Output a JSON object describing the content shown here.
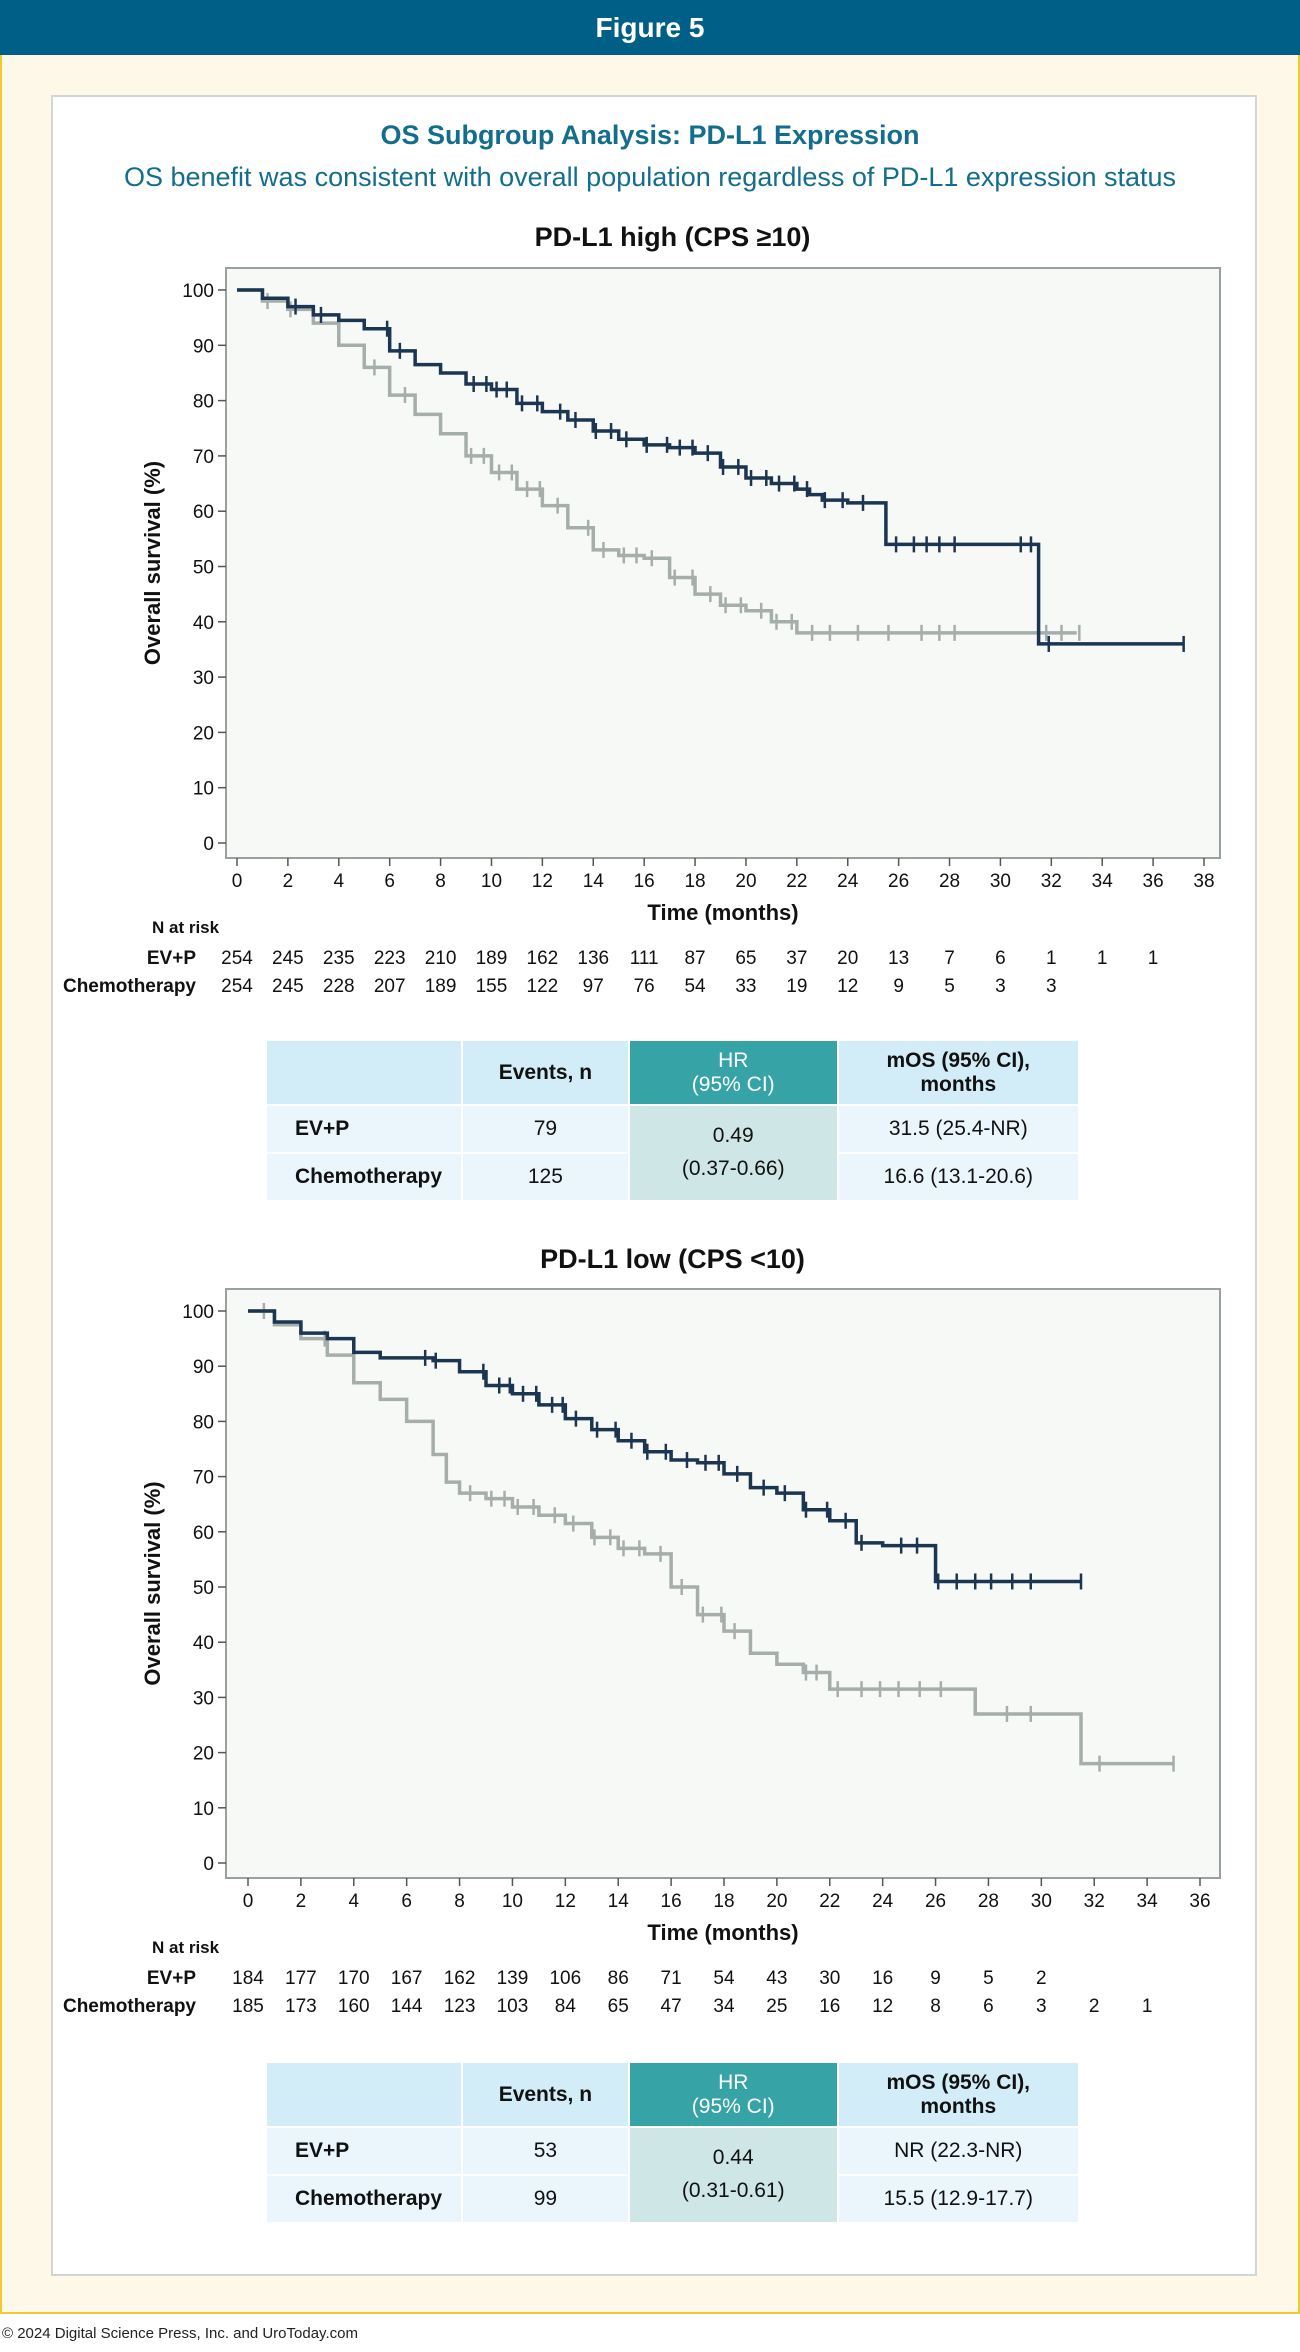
{
  "banner": "Figure 5",
  "header": {
    "title": "OS Subgroup Analysis: PD-L1 Expression",
    "subtitle": "OS benefit was consistent with overall population regardless of PD-L1 expression status"
  },
  "footer": "© 2024 Digital Science Press, Inc. and UroToday.com",
  "colors": {
    "evp": "#1c3551",
    "chemo": "#a6aeac",
    "banner": "#005f87",
    "title": "#136e8e",
    "hr_header": "#36a3a6"
  },
  "chart_data": [
    {
      "type": "line",
      "title": "PD-L1 high (CPS ≥10)",
      "xlabel": "Time (months)",
      "ylabel": "Overall survival (%)",
      "xlim": [
        0,
        38
      ],
      "ylim": [
        0,
        100
      ],
      "xticks": [
        0,
        2,
        4,
        6,
        8,
        10,
        12,
        14,
        16,
        18,
        20,
        22,
        24,
        26,
        28,
        30,
        32,
        34,
        36,
        38
      ],
      "yticks": [
        0,
        10,
        20,
        30,
        40,
        50,
        60,
        70,
        80,
        90,
        100
      ],
      "series": [
        {
          "name": "EV+P",
          "color": "#1c3551",
          "x": [
            0,
            1,
            2,
            3,
            4,
            5,
            6,
            7,
            8,
            9,
            10,
            11,
            12,
            13,
            14,
            15,
            16,
            17,
            18,
            19,
            20,
            21,
            22,
            22.5,
            23,
            24,
            25,
            25.5,
            26,
            28,
            30,
            31.5,
            32,
            34,
            36,
            37.2
          ],
          "y": [
            100,
            98.5,
            97,
            95.5,
            94.5,
            93,
            89,
            86.5,
            85,
            83,
            82,
            79.5,
            78,
            76.5,
            74.5,
            73,
            72,
            71.5,
            70.5,
            68,
            66,
            65,
            64,
            63,
            62,
            61.5,
            61.5,
            54,
            54,
            54,
            54,
            36,
            36,
            36,
            36,
            36
          ],
          "censor_x": [
            2.3,
            3.3,
            5.9,
            6.4,
            9.3,
            9.8,
            10.2,
            10.6,
            11.2,
            11.8,
            12.7,
            13.3,
            14.1,
            14.7,
            15.3,
            16.1,
            16.9,
            17.4,
            17.9,
            18.5,
            19.1,
            19.7,
            20.2,
            20.8,
            21.3,
            21.9,
            22.4,
            23.1,
            23.8,
            24.6,
            25.9,
            26.6,
            27.1,
            27.6,
            28.2,
            30.8,
            31.2,
            31.9,
            37.2
          ]
        },
        {
          "name": "Chemotherapy",
          "color": "#a6aeac",
          "x": [
            0,
            1,
            2,
            3,
            4,
            5,
            6,
            7,
            8,
            9,
            10,
            11,
            12,
            13,
            14,
            15,
            16,
            17,
            18,
            19,
            20,
            21,
            22,
            23,
            24,
            26,
            28,
            30,
            31,
            33
          ],
          "y": [
            100,
            98,
            96.5,
            94,
            90,
            86,
            81,
            77.5,
            74,
            70,
            67,
            64,
            61,
            57,
            53,
            52,
            51.5,
            48,
            45,
            43,
            42,
            40,
            38,
            38,
            38,
            38,
            38,
            38,
            38,
            38
          ],
          "censor_x": [
            1.2,
            2.1,
            5.4,
            6.6,
            9.2,
            9.7,
            10.3,
            10.8,
            11.4,
            11.9,
            12.6,
            13.8,
            14.4,
            15.2,
            15.7,
            16.3,
            17.2,
            17.9,
            18.6,
            19.2,
            19.8,
            20.6,
            21.2,
            21.8,
            22.6,
            23.3,
            24.4,
            25.6,
            26.9,
            27.6,
            28.2,
            31.8,
            32.4,
            33.1
          ]
        }
      ]
    },
    {
      "type": "line",
      "title": "PD-L1 low (CPS <10)",
      "xlabel": "Time (months)",
      "ylabel": "Overall survival (%)",
      "xlim": [
        0,
        36
      ],
      "ylim": [
        0,
        100
      ],
      "xticks": [
        0,
        2,
        4,
        6,
        8,
        10,
        12,
        14,
        16,
        18,
        20,
        22,
        24,
        26,
        28,
        30,
        32,
        34,
        36
      ],
      "yticks": [
        0,
        10,
        20,
        30,
        40,
        50,
        60,
        70,
        80,
        90,
        100
      ],
      "series": [
        {
          "name": "EV+P",
          "color": "#1c3551",
          "x": [
            0,
            1,
            2,
            3,
            4,
            5,
            6,
            7,
            8,
            9,
            10,
            11,
            12,
            13,
            14,
            15,
            16,
            17,
            18,
            19,
            20,
            21,
            22,
            23,
            24,
            25,
            26,
            27,
            28,
            29,
            30,
            31,
            31.5
          ],
          "y": [
            100,
            98,
            96,
            95,
            92.5,
            91.5,
            91.5,
            91,
            89,
            86.5,
            85,
            83,
            80.5,
            78.5,
            76.5,
            74.5,
            73,
            72.5,
            70.5,
            68,
            67,
            64,
            62,
            58,
            57.5,
            57.5,
            51,
            51,
            51,
            51,
            51,
            51,
            51
          ],
          "censor_x": [
            6.7,
            7.1,
            8.9,
            9.5,
            9.9,
            10.4,
            10.9,
            11.5,
            11.9,
            12.4,
            13.2,
            13.9,
            14.5,
            15.1,
            15.8,
            16.6,
            17.3,
            17.8,
            18.5,
            19.5,
            20.3,
            21.1,
            21.9,
            22.6,
            23.2,
            24.7,
            25.3,
            26.1,
            26.8,
            27.5,
            28.1,
            28.9,
            29.6,
            31.5
          ]
        },
        {
          "name": "Chemotherapy",
          "color": "#a6aeac",
          "x": [
            0,
            1,
            2,
            3,
            4,
            5,
            6,
            7,
            7.5,
            8,
            9,
            10,
            11,
            12,
            13,
            14,
            15,
            16,
            17,
            18,
            19,
            20,
            21,
            22,
            23,
            24,
            25,
            26,
            27,
            27.5,
            28,
            30,
            31,
            31.5,
            33,
            35
          ],
          "y": [
            100,
            97.5,
            95,
            92,
            87,
            84,
            80,
            74,
            69,
            67,
            66,
            64.5,
            63,
            61.5,
            59,
            57,
            56,
            50,
            45,
            42,
            38,
            36,
            34.5,
            31.5,
            31.5,
            31.5,
            31.5,
            31.5,
            31.5,
            27,
            27,
            27,
            27,
            18,
            18,
            18
          ],
          "censor_x": [
            0.6,
            2.9,
            8.4,
            9.2,
            9.7,
            10.2,
            10.8,
            11.6,
            12.3,
            13.1,
            13.7,
            14.2,
            14.8,
            15.6,
            16.4,
            17.2,
            17.9,
            18.4,
            21.1,
            21.5,
            22.3,
            23.2,
            23.9,
            24.6,
            25.4,
            26.2,
            28.7,
            29.6,
            32.2,
            35
          ]
        }
      ]
    }
  ],
  "risk_tables": [
    {
      "heading": "N at risk",
      "rows": [
        {
          "label": "EV+P",
          "values": [
            "254",
            "245",
            "235",
            "223",
            "210",
            "189",
            "162",
            "136",
            "111",
            "87",
            "65",
            "37",
            "20",
            "13",
            "7",
            "6",
            "1",
            "1",
            "1"
          ]
        },
        {
          "label": "Chemotherapy",
          "values": [
            "254",
            "245",
            "228",
            "207",
            "189",
            "155",
            "122",
            "97",
            "76",
            "54",
            "33",
            "19",
            "12",
            "9",
            "5",
            "3",
            "3"
          ]
        }
      ]
    },
    {
      "heading": "N at risk",
      "rows": [
        {
          "label": "EV+P",
          "values": [
            "184",
            "177",
            "170",
            "167",
            "162",
            "139",
            "106",
            "86",
            "71",
            "54",
            "43",
            "30",
            "16",
            "9",
            "5",
            "2"
          ]
        },
        {
          "label": "Chemotherapy",
          "values": [
            "185",
            "173",
            "160",
            "144",
            "123",
            "103",
            "84",
            "65",
            "47",
            "34",
            "25",
            "16",
            "12",
            "8",
            "6",
            "3",
            "2",
            "1"
          ]
        }
      ]
    }
  ],
  "results_tables": [
    {
      "headers": {
        "events": "Events, n",
        "hr1": "HR",
        "hr2": "(95% CI)",
        "mos1": "mOS (95% CI),",
        "mos2": "months"
      },
      "hr": "0.49",
      "hr_ci": "(0.37-0.66)",
      "rows": [
        {
          "label": "EV+P",
          "events": "79",
          "mos": "31.5 (25.4-NR)"
        },
        {
          "label": "Chemotherapy",
          "events": "125",
          "mos": "16.6 (13.1-20.6)"
        }
      ]
    },
    {
      "headers": {
        "events": "Events, n",
        "hr1": "HR",
        "hr2": "(95% CI)",
        "mos1": "mOS (95% CI),",
        "mos2": "months"
      },
      "hr": "0.44",
      "hr_ci": "(0.31-0.61)",
      "rows": [
        {
          "label": "EV+P",
          "events": "53",
          "mos": "NR (22.3-NR)"
        },
        {
          "label": "Chemotherapy",
          "events": "99",
          "mos": "15.5 (12.9-17.7)"
        }
      ]
    }
  ]
}
